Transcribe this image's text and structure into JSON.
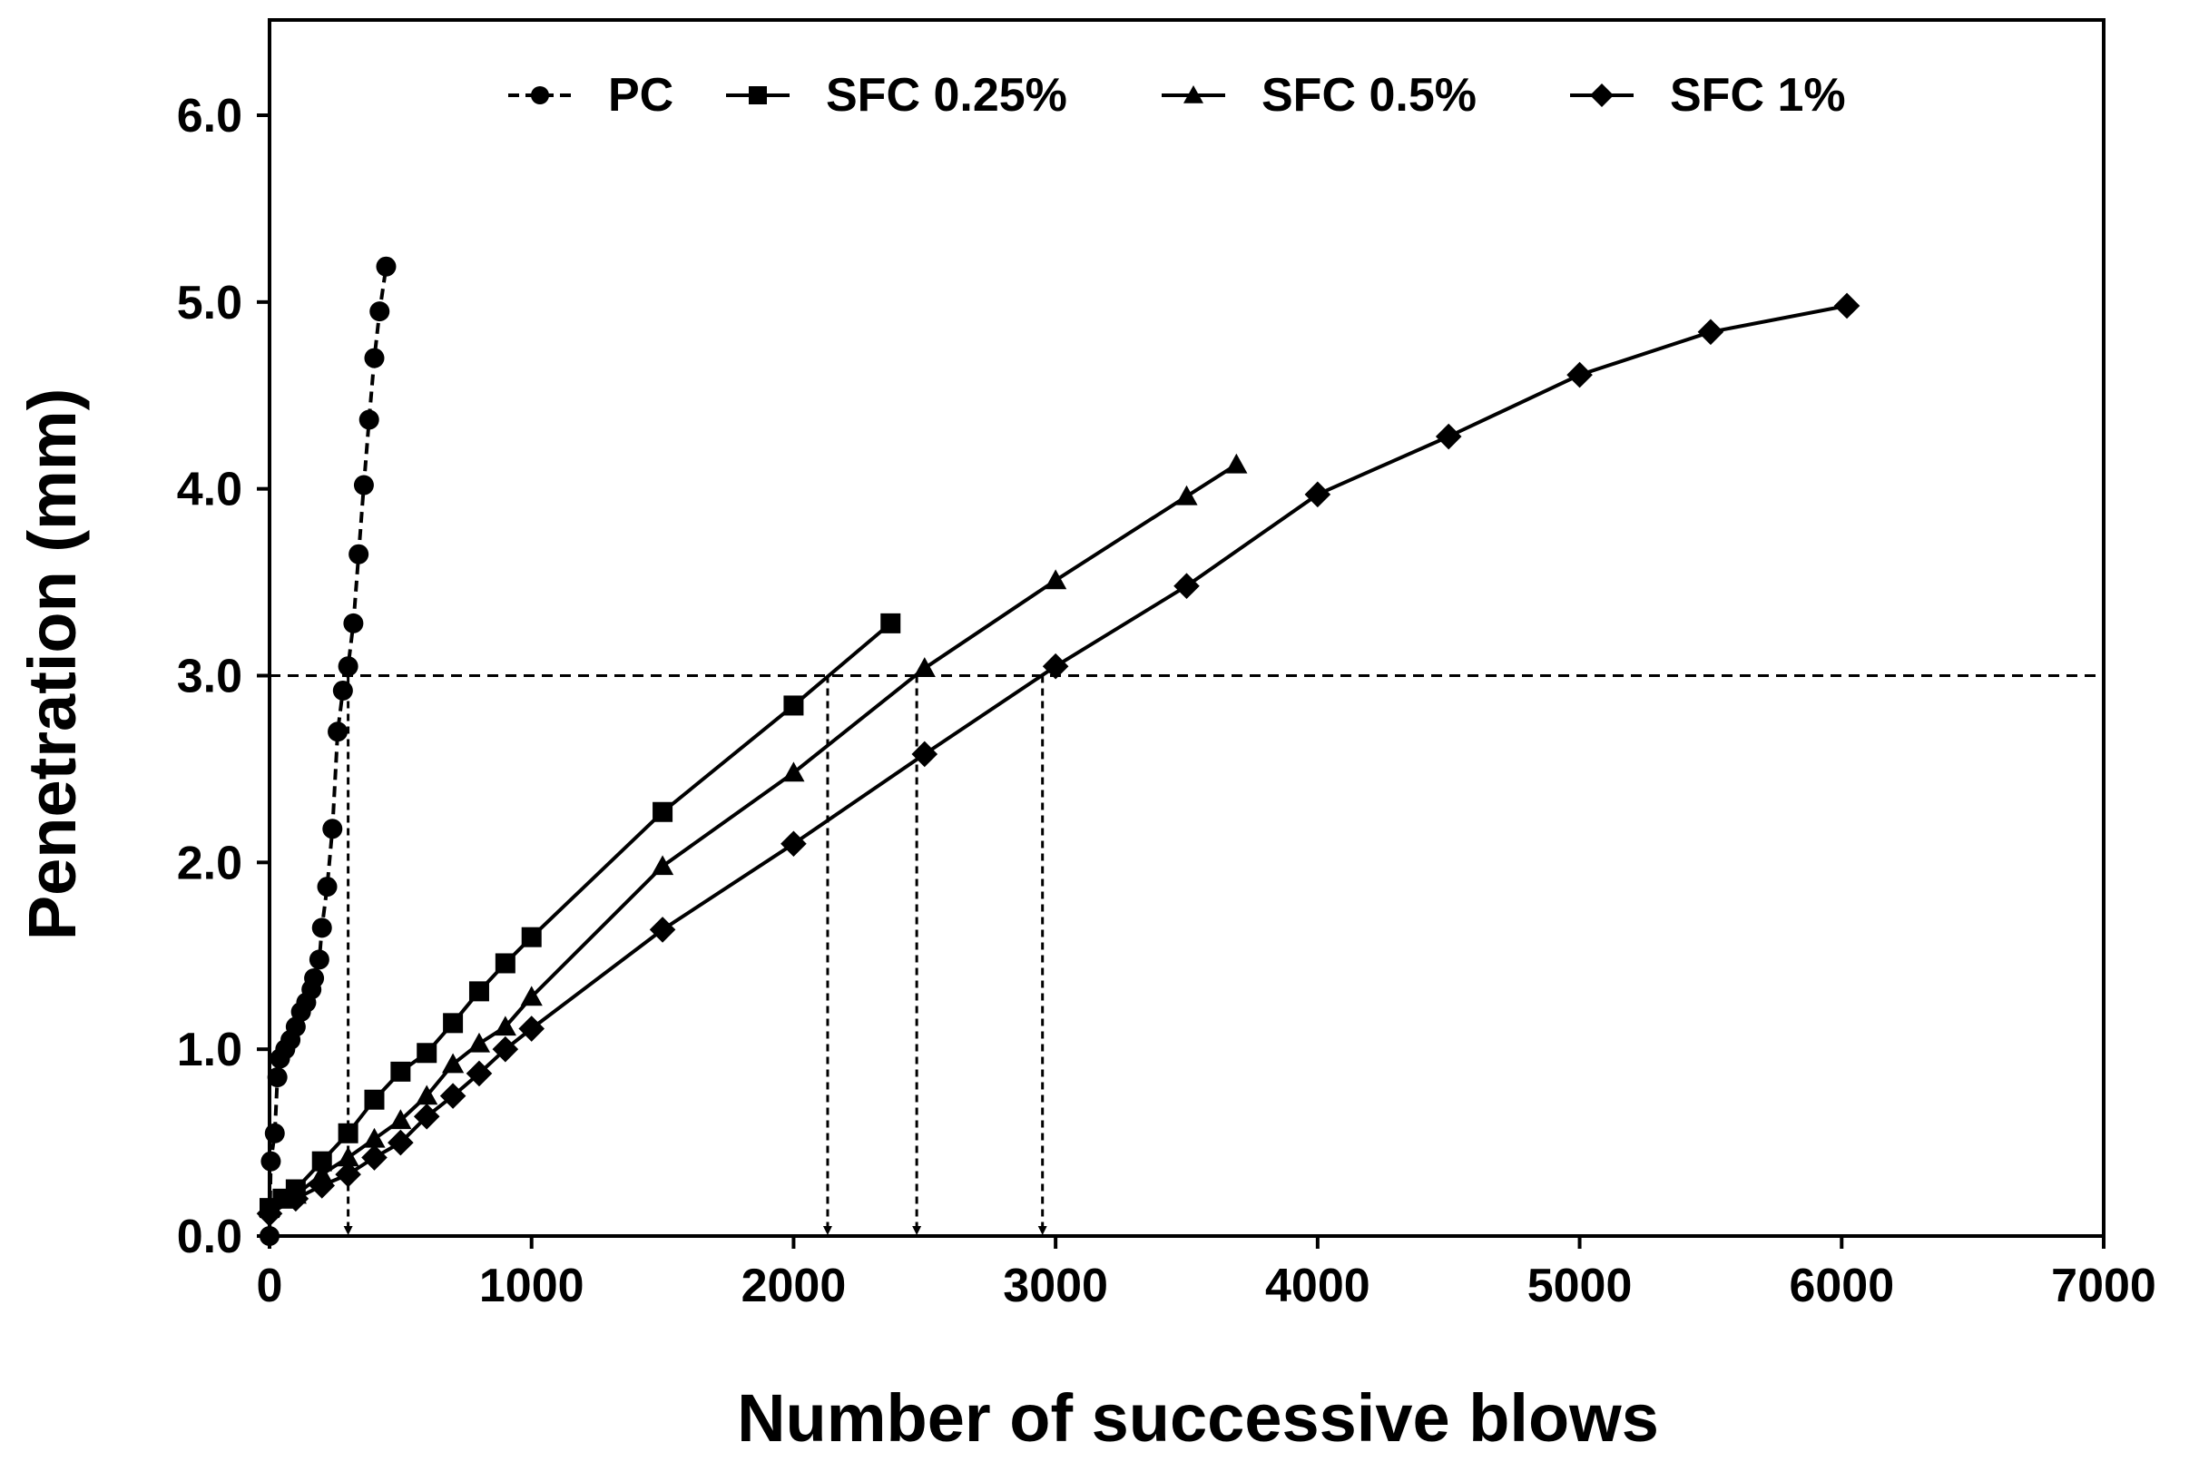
{
  "chart_data": {
    "type": "line",
    "title": "",
    "xlabel": "Number of successive blows",
    "ylabel": "Penetration (mm)",
    "xlim": [
      0,
      7000
    ],
    "ylim": [
      0,
      6.0
    ],
    "x_ticks": [
      0,
      1000,
      2000,
      3000,
      4000,
      5000,
      6000,
      7000
    ],
    "x_tick_labels": [
      "0",
      "1000",
      "2000",
      "3000",
      "4000",
      "5000",
      "6000",
      "7000"
    ],
    "y_ticks": [
      0,
      1,
      2,
      3,
      4,
      5,
      6
    ],
    "y_tick_labels": [
      "0.0",
      "1.0",
      "2.0",
      "3.0",
      "4.0",
      "5.0",
      "6.0"
    ],
    "grid": false,
    "legend_position": "top",
    "series": [
      {
        "name": "PC",
        "marker": "circle",
        "line_style": "dashed",
        "color": "#000000",
        "points": [
          [
            0,
            0.0
          ],
          [
            5,
            0.4
          ],
          [
            20,
            0.55
          ],
          [
            30,
            0.85
          ],
          [
            40,
            0.95
          ],
          [
            60,
            1.0
          ],
          [
            80,
            1.05
          ],
          [
            100,
            1.12
          ],
          [
            120,
            1.2
          ],
          [
            140,
            1.25
          ],
          [
            160,
            1.32
          ],
          [
            170,
            1.38
          ],
          [
            190,
            1.48
          ],
          [
            200,
            1.65
          ],
          [
            220,
            1.87
          ],
          [
            240,
            2.18
          ],
          [
            260,
            2.7
          ],
          [
            280,
            2.92
          ],
          [
            300,
            3.05
          ],
          [
            320,
            3.28
          ],
          [
            340,
            3.65
          ],
          [
            360,
            4.02
          ],
          [
            380,
            4.37
          ],
          [
            400,
            4.7
          ],
          [
            420,
            4.95
          ],
          [
            445,
            5.19
          ]
        ]
      },
      {
        "name": "SFC 0.25%",
        "marker": "square",
        "line_style": "solid",
        "color": "#000000",
        "points": [
          [
            0,
            0.15
          ],
          [
            50,
            0.2
          ],
          [
            100,
            0.25
          ],
          [
            200,
            0.4
          ],
          [
            300,
            0.55
          ],
          [
            400,
            0.73
          ],
          [
            500,
            0.88
          ],
          [
            600,
            0.98
          ],
          [
            700,
            1.14
          ],
          [
            800,
            1.31
          ],
          [
            900,
            1.46
          ],
          [
            1000,
            1.6
          ],
          [
            1500,
            2.27
          ],
          [
            2000,
            2.84
          ],
          [
            2370,
            3.28
          ]
        ]
      },
      {
        "name": "SFC 0.5%",
        "marker": "triangle",
        "line_style": "solid",
        "color": "#000000",
        "points": [
          [
            0,
            0.15
          ],
          [
            100,
            0.22
          ],
          [
            200,
            0.33
          ],
          [
            300,
            0.42
          ],
          [
            400,
            0.52
          ],
          [
            500,
            0.62
          ],
          [
            600,
            0.75
          ],
          [
            700,
            0.92
          ],
          [
            800,
            1.03
          ],
          [
            900,
            1.12
          ],
          [
            1000,
            1.28
          ],
          [
            1500,
            1.98
          ],
          [
            2000,
            2.48
          ],
          [
            2500,
            3.04
          ],
          [
            3000,
            3.51
          ],
          [
            3500,
            3.96
          ],
          [
            3690,
            4.13
          ]
        ]
      },
      {
        "name": "SFC 1%",
        "marker": "diamond",
        "line_style": "solid",
        "color": "#000000",
        "points": [
          [
            0,
            0.12
          ],
          [
            100,
            0.2
          ],
          [
            200,
            0.27
          ],
          [
            300,
            0.33
          ],
          [
            400,
            0.42
          ],
          [
            500,
            0.5
          ],
          [
            600,
            0.64
          ],
          [
            700,
            0.75
          ],
          [
            800,
            0.87
          ],
          [
            900,
            1.0
          ],
          [
            1000,
            1.11
          ],
          [
            1500,
            1.64
          ],
          [
            2000,
            2.1
          ],
          [
            2500,
            2.58
          ],
          [
            3000,
            3.05
          ],
          [
            3500,
            3.48
          ],
          [
            4000,
            3.97
          ],
          [
            4500,
            4.28
          ],
          [
            5000,
            4.61
          ],
          [
            5500,
            4.84
          ],
          [
            6020,
            4.98
          ]
        ]
      }
    ],
    "reference_line": {
      "y": 3.0,
      "line_style": "dashed"
    },
    "drop_lines": [
      {
        "x": 300,
        "y": 3.0
      },
      {
        "x": 2130,
        "y": 3.0
      },
      {
        "x": 2470,
        "y": 3.0
      },
      {
        "x": 2950,
        "y": 3.0
      }
    ]
  }
}
